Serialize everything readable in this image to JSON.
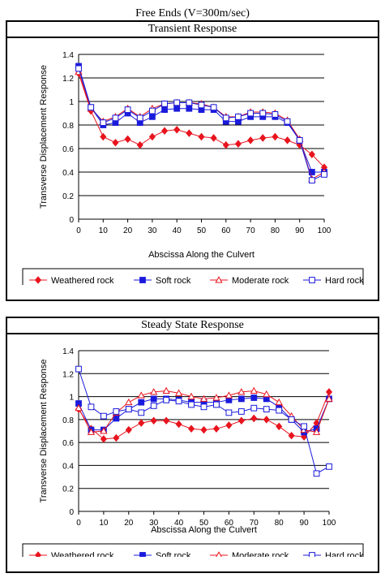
{
  "header": {
    "main_title": "Free  Ends  (V=300m/sec)"
  },
  "colors": {
    "Weathered rock": "#e8141e",
    "Soft rock": "#1a1adc",
    "Moderate rock": "#e8141e",
    "Hard rock": "#1a1adc"
  },
  "chart_data": [
    {
      "type": "line",
      "title": "Transient  Response",
      "xlabel": "Abscissa Along the Culvert",
      "ylabel": "Transverse Displacement Response",
      "x": [
        0,
        5,
        10,
        15,
        20,
        25,
        30,
        35,
        40,
        45,
        50,
        55,
        60,
        65,
        70,
        75,
        80,
        85,
        90,
        95,
        100
      ],
      "xticks": [
        0,
        10,
        20,
        30,
        40,
        50,
        60,
        70,
        80,
        90,
        100
      ],
      "yticks": [
        "0",
        "0.2",
        "0.4",
        "0.6",
        "0.8",
        "1",
        "1.2",
        "1.4"
      ],
      "xlim": [
        0,
        100
      ],
      "ylim": [
        0,
        1.4
      ],
      "grid": true,
      "legend_position": "bottom",
      "series": [
        {
          "name": "Weathered rock",
          "marker": "diamond",
          "values": [
            1.24,
            0.92,
            0.7,
            0.65,
            0.68,
            0.63,
            0.7,
            0.75,
            0.76,
            0.73,
            0.7,
            0.69,
            0.63,
            0.64,
            0.67,
            0.69,
            0.7,
            0.67,
            0.63,
            0.55,
            0.44
          ]
        },
        {
          "name": "Soft rock",
          "marker": "square",
          "values": [
            1.3,
            0.95,
            0.8,
            0.82,
            0.9,
            0.82,
            0.87,
            0.93,
            0.94,
            0.94,
            0.93,
            0.93,
            0.83,
            0.83,
            0.87,
            0.87,
            0.87,
            0.82,
            0.67,
            0.4,
            0.4
          ]
        },
        {
          "name": "Moderate rock",
          "marker": "triangle-open",
          "values": [
            1.25,
            0.94,
            0.83,
            0.87,
            0.94,
            0.87,
            0.94,
            0.98,
            0.99,
            0.99,
            0.98,
            0.95,
            0.87,
            0.87,
            0.91,
            0.91,
            0.9,
            0.84,
            0.68,
            0.34,
            0.4
          ]
        },
        {
          "name": "Hard rock",
          "marker": "square-open",
          "values": [
            1.28,
            0.95,
            0.82,
            0.86,
            0.93,
            0.86,
            0.92,
            0.98,
            0.99,
            0.99,
            0.97,
            0.95,
            0.86,
            0.87,
            0.9,
            0.9,
            0.89,
            0.83,
            0.67,
            0.33,
            0.38
          ]
        }
      ]
    },
    {
      "type": "line",
      "title": "Steady  State  Response",
      "xlabel": "Abscissa Along the Culvert",
      "ylabel": "Transverse Displacement Response",
      "x": [
        0,
        5,
        10,
        15,
        20,
        25,
        30,
        35,
        40,
        45,
        50,
        55,
        60,
        65,
        70,
        75,
        80,
        85,
        90,
        95,
        100
      ],
      "xticks": [
        0,
        10,
        20,
        30,
        40,
        50,
        60,
        70,
        80,
        90,
        100
      ],
      "yticks": [
        "0",
        "0.2",
        "0.4",
        "0.6",
        "0.8",
        "1",
        "1.2",
        "1.4"
      ],
      "xlim": [
        0,
        100
      ],
      "ylim": [
        0,
        1.4
      ],
      "grid": true,
      "legend_position": "bottom",
      "series": [
        {
          "name": "Weathered rock",
          "marker": "diamond",
          "values": [
            0.89,
            0.72,
            0.63,
            0.64,
            0.71,
            0.77,
            0.79,
            0.79,
            0.76,
            0.72,
            0.71,
            0.72,
            0.75,
            0.79,
            0.81,
            0.8,
            0.74,
            0.66,
            0.65,
            0.77,
            1.04
          ]
        },
        {
          "name": "Soft rock",
          "marker": "square",
          "values": [
            0.94,
            0.71,
            0.71,
            0.81,
            0.89,
            0.95,
            0.98,
            0.98,
            0.97,
            0.95,
            0.95,
            0.95,
            0.97,
            0.98,
            0.99,
            0.98,
            0.91,
            0.8,
            0.69,
            0.72,
            0.98
          ]
        },
        {
          "name": "Moderate rock",
          "marker": "triangle-open",
          "values": [
            0.9,
            0.69,
            0.7,
            0.86,
            0.95,
            1.01,
            1.04,
            1.05,
            1.03,
            1.0,
            0.98,
            0.99,
            1.01,
            1.04,
            1.05,
            1.02,
            0.95,
            0.83,
            0.71,
            0.69,
            0.98
          ]
        },
        {
          "name": "Hard rock",
          "marker": "square-open",
          "values": [
            1.24,
            0.91,
            0.83,
            0.87,
            0.89,
            0.86,
            0.92,
            0.97,
            0.96,
            0.93,
            0.91,
            0.93,
            0.86,
            0.87,
            0.9,
            0.89,
            0.88,
            0.8,
            0.74,
            0.33,
            0.39
          ]
        }
      ]
    }
  ]
}
